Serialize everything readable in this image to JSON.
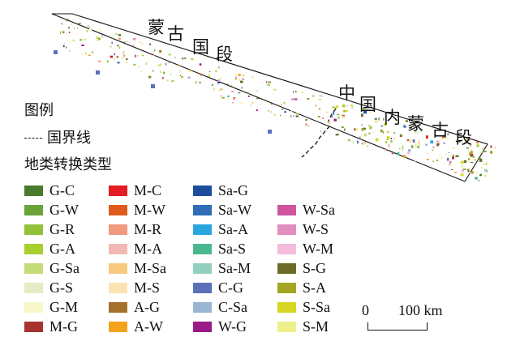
{
  "regions": {
    "mongolia": "蒙古国段",
    "china": "中国内蒙古段"
  },
  "legend": {
    "title": "图例",
    "border_label": "国界线",
    "class_title": "地类转换类型",
    "items": [
      {
        "code": "G-C",
        "color": "#4a7a2c"
      },
      {
        "code": "G-W",
        "color": "#6aa33a"
      },
      {
        "code": "G-R",
        "color": "#92c23c"
      },
      {
        "code": "G-A",
        "color": "#a8cf2e"
      },
      {
        "code": "G-Sa",
        "color": "#c4dd7a"
      },
      {
        "code": "G-S",
        "color": "#e2edc3"
      },
      {
        "code": "G-M",
        "color": "#f8f7c8"
      },
      {
        "code": "M-G",
        "color": "#a8322d"
      },
      {
        "code": "M-C",
        "color": "#e31d23"
      },
      {
        "code": "M-W",
        "color": "#e05a1e"
      },
      {
        "code": "M-R",
        "color": "#f19a7d"
      },
      {
        "code": "M-A",
        "color": "#f2b9b4"
      },
      {
        "code": "M-Sa",
        "color": "#f7c97f"
      },
      {
        "code": "M-S",
        "color": "#fbe3b4"
      },
      {
        "code": "A-G",
        "color": "#a5702c"
      },
      {
        "code": "A-W",
        "color": "#f4a31e"
      },
      {
        "code": "Sa-G",
        "color": "#1c4e9d"
      },
      {
        "code": "Sa-W",
        "color": "#2f6db6"
      },
      {
        "code": "Sa-A",
        "color": "#2aa6dd"
      },
      {
        "code": "Sa-S",
        "color": "#4ab88f"
      },
      {
        "code": "Sa-M",
        "color": "#92cfc0"
      },
      {
        "code": "C-G",
        "color": "#5b70b8"
      },
      {
        "code": "C-Sa",
        "color": "#9bb5d4"
      },
      {
        "code": "W-G",
        "color": "#9a1a87"
      },
      {
        "code": "W-Sa",
        "color": "#d0549e"
      },
      {
        "code": "W-S",
        "color": "#e18fc0"
      },
      {
        "code": "W-M",
        "color": "#f3bcdb"
      },
      {
        "code": "S-G",
        "color": "#6b6b27"
      },
      {
        "code": "S-A",
        "color": "#a3a523"
      },
      {
        "code": "S-Sa",
        "color": "#d6d725"
      },
      {
        "code": "S-M",
        "color": "#eef08a"
      }
    ]
  },
  "scalebar": {
    "zero": "0",
    "max_label": "100 km"
  }
}
